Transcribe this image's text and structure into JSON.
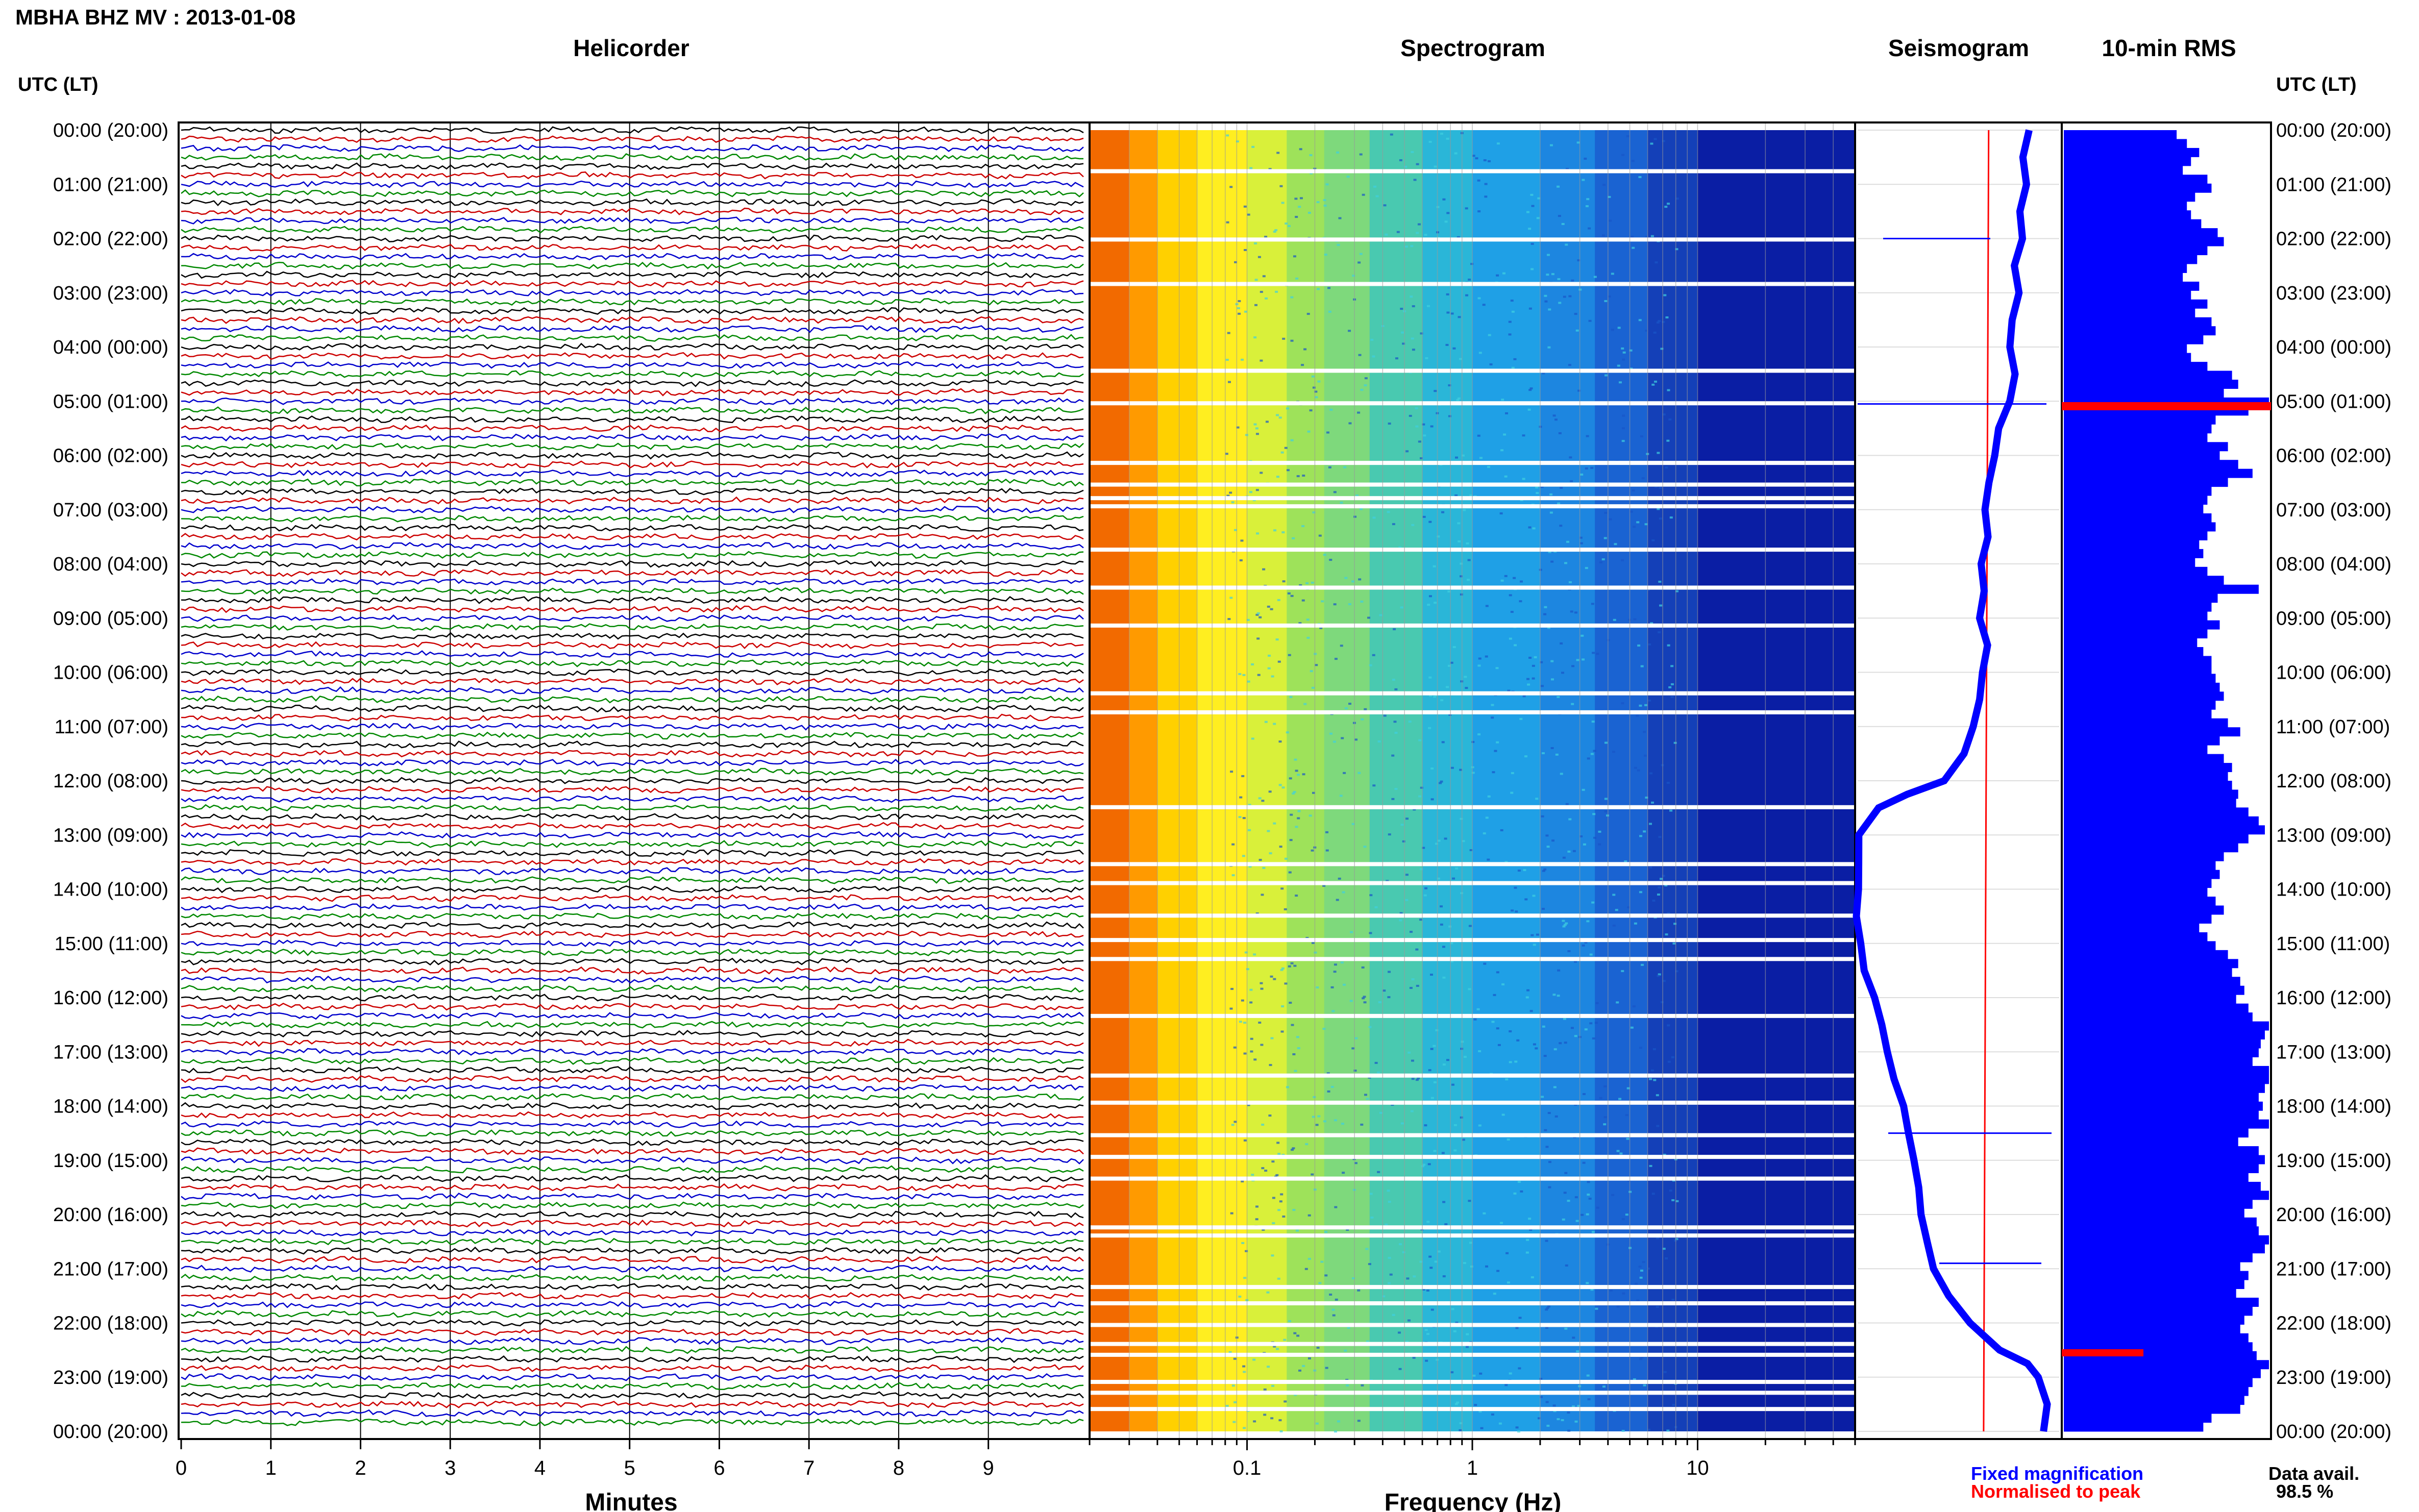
{
  "header": {
    "title": "MBHA BHZ MV : 2013-01-08"
  },
  "panels": {
    "helicorder": "Helicorder",
    "spectrogram": "Spectrogram",
    "seismogram": "Seismogram",
    "rms": "10-min RMS"
  },
  "axes": {
    "left_title": "UTC (LT)",
    "right_title": "UTC (LT)",
    "minutes_label": "Minutes",
    "frequency_label": "Frequency (Hz)"
  },
  "legend": {
    "fixed": "Fixed magnification",
    "normalised": "Normalised to peak",
    "fixed_color": "#0000ff",
    "normalised_color": "#ff0000"
  },
  "data_avail": {
    "label": "Data avail.",
    "value": "98.5 %"
  },
  "chart_data": {
    "type": "helicorder",
    "time_ticks": [
      "00:00 (20:00)",
      "01:00 (21:00)",
      "02:00 (22:00)",
      "03:00 (23:00)",
      "04:00 (00:00)",
      "05:00 (01:00)",
      "06:00 (02:00)",
      "07:00 (03:00)",
      "08:00 (04:00)",
      "09:00 (05:00)",
      "10:00 (06:00)",
      "11:00 (07:00)",
      "12:00 (08:00)",
      "13:00 (09:00)",
      "14:00 (10:00)",
      "15:00 (11:00)",
      "16:00 (12:00)",
      "17:00 (13:00)",
      "18:00 (14:00)",
      "19:00 (15:00)",
      "20:00 (16:00)",
      "21:00 (17:00)",
      "22:00 (18:00)",
      "23:00 (19:00)",
      "00:00 (20:00)"
    ],
    "minute_ticks": [
      "0",
      "1",
      "2",
      "3",
      "4",
      "5",
      "6",
      "7",
      "8",
      "9"
    ],
    "freq_ticks": [
      "0.1",
      "1",
      "10"
    ],
    "freq_range_hz": [
      0.02,
      50
    ],
    "trace_colors": [
      "#000000",
      "#cc0000",
      "#0000cc",
      "#008800"
    ],
    "rows_per_hour": 6,
    "spectrogram_gaps_hours": [
      0.72,
      1.98,
      2.8,
      4.4,
      5.0,
      6.1,
      6.5,
      6.75,
      6.9,
      7.7,
      8.4,
      9.1,
      10.35,
      10.7,
      12.45,
      13.5,
      13.85,
      14.45,
      14.9,
      15.25,
      16.3,
      17.4,
      17.9,
      18.5,
      18.9,
      19.3,
      20.2,
      20.35,
      21.3,
      21.6,
      22.0,
      22.35,
      22.55,
      23.05,
      23.25,
      23.55
    ],
    "seismogram_profile": [
      [
        0,
        3.4
      ],
      [
        0.5,
        3.3
      ],
      [
        1,
        3.35
      ],
      [
        1.5,
        3.2
      ],
      [
        2,
        3.3
      ],
      [
        2.5,
        3.1
      ],
      [
        3,
        3.2
      ],
      [
        3.5,
        3.05
      ],
      [
        4,
        3.0
      ],
      [
        4.5,
        3.15
      ],
      [
        5,
        3.0
      ],
      [
        5.5,
        2.8
      ],
      [
        6,
        2.7
      ],
      [
        6.5,
        2.6
      ],
      [
        7,
        2.5
      ],
      [
        7.5,
        2.6
      ],
      [
        8,
        2.45
      ],
      [
        8.5,
        2.5
      ],
      [
        9,
        2.4
      ],
      [
        9.5,
        2.55
      ],
      [
        10,
        2.5
      ],
      [
        10.5,
        2.4
      ],
      [
        11,
        2.3
      ],
      [
        11.5,
        2.1
      ],
      [
        12,
        1.7
      ],
      [
        12.25,
        1.0
      ],
      [
        12.5,
        0.4
      ],
      [
        13,
        0.05
      ],
      [
        13.5,
        0.0
      ],
      [
        14,
        0.0
      ],
      [
        14.5,
        0.0
      ],
      [
        15,
        0.05
      ],
      [
        15.5,
        0.15
      ],
      [
        16,
        0.35
      ],
      [
        16.5,
        0.5
      ],
      [
        17,
        0.6
      ],
      [
        17.5,
        0.75
      ],
      [
        18,
        0.9
      ],
      [
        18.5,
        1.0
      ],
      [
        19,
        1.1
      ],
      [
        19.5,
        1.2
      ],
      [
        20,
        1.25
      ],
      [
        20.5,
        1.35
      ],
      [
        21,
        1.5
      ],
      [
        21.5,
        1.8
      ],
      [
        22,
        2.2
      ],
      [
        22.5,
        2.8
      ],
      [
        22.75,
        3.4
      ],
      [
        23,
        3.6
      ],
      [
        23.5,
        3.75
      ],
      [
        24,
        3.7
      ]
    ],
    "rms_values": [
      0.55,
      0.6,
      0.66,
      0.62,
      0.58,
      0.7,
      0.72,
      0.64,
      0.6,
      0.62,
      0.67,
      0.75,
      0.78,
      0.7,
      0.65,
      0.6,
      0.58,
      0.66,
      0.62,
      0.7,
      0.64,
      0.72,
      0.74,
      0.68,
      0.6,
      0.62,
      0.7,
      0.82,
      0.85,
      0.78,
      1.0,
      0.9,
      0.74,
      0.72,
      0.7,
      0.8,
      0.76,
      0.85,
      0.92,
      0.8,
      0.72,
      0.7,
      0.68,
      0.72,
      0.74,
      0.7,
      0.66,
      0.68,
      0.64,
      0.7,
      0.78,
      0.95,
      0.75,
      0.72,
      0.7,
      0.76,
      0.7,
      0.65,
      0.68,
      0.72,
      0.72,
      0.74,
      0.76,
      0.78,
      0.74,
      0.72,
      0.8,
      0.86,
      0.76,
      0.7,
      0.78,
      0.82,
      0.8,
      0.82,
      0.85,
      0.84,
      0.9,
      0.95,
      0.98,
      0.9,
      0.85,
      0.78,
      0.74,
      0.76,
      0.72,
      0.7,
      0.74,
      0.78,
      0.72,
      0.66,
      0.7,
      0.74,
      0.8,
      0.85,
      0.82,
      0.86,
      0.88,
      0.84,
      0.9,
      0.92,
      1.0,
      0.98,
      0.96,
      0.95,
      0.92,
      1.0,
      1.0,
      0.98,
      0.95,
      0.97,
      0.95,
      1.0,
      0.9,
      0.85,
      0.95,
      0.98,
      0.95,
      0.9,
      0.96,
      1.0,
      0.92,
      0.88,
      0.94,
      0.95,
      1.0,
      0.98,
      0.92,
      0.86,
      0.9,
      0.88,
      0.84,
      0.95,
      0.92,
      0.88,
      0.86,
      0.9,
      0.92,
      0.94,
      1.0,
      0.96,
      0.92,
      0.9,
      0.88,
      0.86,
      0.72,
      0.68
    ]
  }
}
